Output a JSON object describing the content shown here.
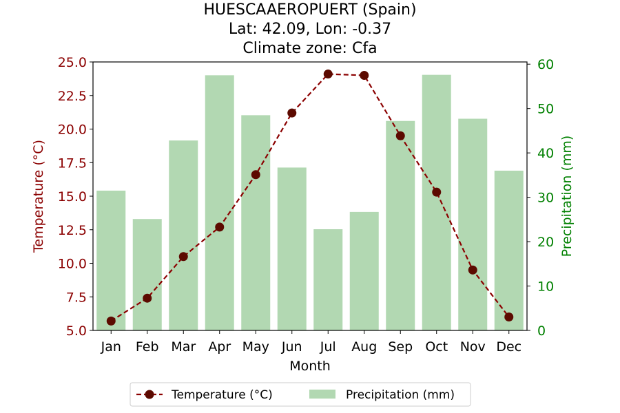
{
  "chart_data": {
    "type": "bar",
    "title_lines": [
      "HUESCAAEROPUERT (Spain)",
      "Lat: 42.09, Lon: -0.37",
      "Climate zone: Cfa"
    ],
    "xlabel": "Month",
    "ylabel_left": "Temperature (°C)",
    "ylabel_right": "Precipitation (mm)",
    "categories": [
      "Jan",
      "Feb",
      "Mar",
      "Apr",
      "May",
      "Jun",
      "Jul",
      "Aug",
      "Sep",
      "Oct",
      "Nov",
      "Dec"
    ],
    "left_axis": {
      "range": [
        5.0,
        25.0
      ],
      "ticks": [
        "5.0",
        "7.5",
        "10.0",
        "12.5",
        "15.0",
        "17.5",
        "20.0",
        "22.5",
        "25.0"
      ],
      "color": "#8b0000"
    },
    "right_axis": {
      "range": [
        0,
        60.5
      ],
      "ticks": [
        "0",
        "10",
        "20",
        "30",
        "40",
        "50",
        "60"
      ],
      "color": "#008000"
    },
    "series": [
      {
        "name": "Temperature (°C)",
        "kind": "line",
        "axis": "left",
        "color": "#8b0000",
        "marker_color": "#5c0a00",
        "values": [
          5.7,
          7.4,
          10.5,
          12.7,
          16.6,
          21.2,
          24.1,
          24.0,
          19.5,
          15.3,
          9.5,
          6.0
        ]
      },
      {
        "name": "Precipitation (mm)",
        "kind": "bar",
        "axis": "right",
        "color": "#b2d8b2",
        "values": [
          31.5,
          25.1,
          42.8,
          57.5,
          48.5,
          36.7,
          22.8,
          26.7,
          47.2,
          57.6,
          47.7,
          36.0
        ]
      }
    ],
    "grid": false,
    "legend_position": "bottom-center"
  }
}
